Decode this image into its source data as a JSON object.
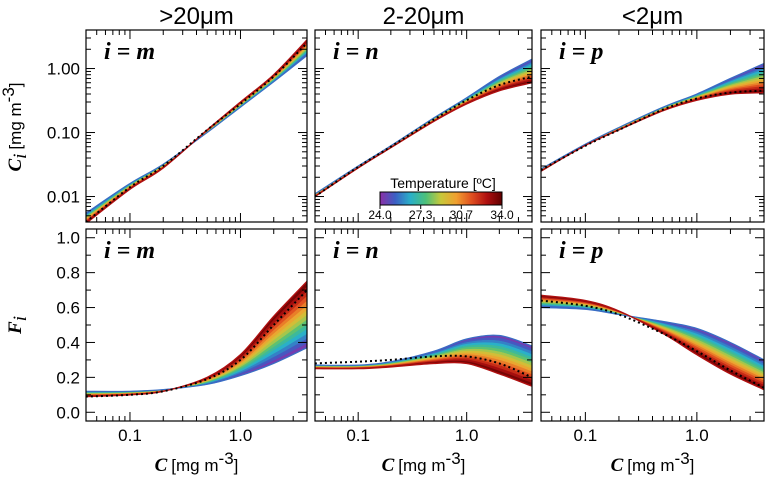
{
  "figure": {
    "column_titles": [
      ">20μm",
      "2-20μm",
      "<2μm"
    ],
    "x_axis": {
      "label_symbol": "C",
      "label_unit": "[mg m",
      "label_exp": "-3",
      "label_close": "]"
    },
    "y_axis_top": {
      "label_symbol": "C",
      "label_sub": "i",
      "label_unit": "[mg m",
      "label_exp": "-3",
      "label_close": "]"
    },
    "y_axis_bottom": {
      "label_symbol": "F",
      "label_sub": "i"
    },
    "colorbar": {
      "title": "Temperature [ºC]",
      "ticks": [
        "24.0",
        "27.3",
        "30.7",
        "34.0"
      ],
      "colors": [
        "#8b2fa6",
        "#3b5fc4",
        "#2ab0c8",
        "#4cc07a",
        "#c8c83a",
        "#f0a030",
        "#e05020",
        "#b01010",
        "#600000"
      ]
    }
  },
  "chart_data": [
    {
      "type": "area",
      "panel": "top-left",
      "label_sym": "i",
      "label_eq": " = ",
      "label_var": "m",
      "xscale": "log",
      "yscale": "log",
      "xlim": [
        0.04,
        4.0
      ],
      "ylim": [
        0.004,
        4.0
      ],
      "x_ticks": [
        "0.1",
        "1.0"
      ],
      "y_ticks": [
        "0.01",
        "0.10",
        "1.00"
      ],
      "x": [
        0.04,
        0.1,
        0.2,
        0.5,
        1.0,
        2.0,
        4.0
      ],
      "series": [
        {
          "name": "T=24.0",
          "values": [
            0.0055,
            0.016,
            0.032,
            0.1,
            0.25,
            0.62,
            1.6
          ]
        },
        {
          "name": "T=34.0",
          "values": [
            0.0038,
            0.013,
            0.028,
            0.11,
            0.3,
            0.8,
            2.8
          ]
        },
        {
          "name": "dotted",
          "values": [
            0.004,
            0.014,
            0.03,
            0.11,
            0.28,
            0.75,
            2.5
          ]
        }
      ]
    },
    {
      "type": "area",
      "panel": "top-middle",
      "label_sym": "i",
      "label_eq": " = ",
      "label_var": "n",
      "xscale": "log",
      "yscale": "log",
      "xlim": [
        0.04,
        4.0
      ],
      "ylim": [
        0.004,
        4.0
      ],
      "x_ticks": [
        "0.1",
        "1.0"
      ],
      "y_ticks": [],
      "x": [
        0.04,
        0.1,
        0.2,
        0.5,
        1.0,
        2.0,
        4.0
      ],
      "series": [
        {
          "name": "T=24.0",
          "values": [
            0.011,
            0.03,
            0.062,
            0.17,
            0.35,
            0.75,
            1.4
          ]
        },
        {
          "name": "T=34.0",
          "values": [
            0.01,
            0.028,
            0.058,
            0.15,
            0.28,
            0.45,
            0.6
          ]
        },
        {
          "name": "dotted",
          "values": [
            0.01,
            0.029,
            0.06,
            0.16,
            0.32,
            0.55,
            0.75
          ]
        }
      ]
    },
    {
      "type": "area",
      "panel": "top-right",
      "label_sym": "i",
      "label_eq": " = ",
      "label_var": "p",
      "xscale": "log",
      "yscale": "log",
      "xlim": [
        0.04,
        4.0
      ],
      "ylim": [
        0.004,
        4.0
      ],
      "x_ticks": [
        "0.1",
        "1.0"
      ],
      "y_ticks": [],
      "x": [
        0.04,
        0.1,
        0.2,
        0.5,
        1.0,
        2.0,
        4.0
      ],
      "series": [
        {
          "name": "T=24.0",
          "values": [
            0.027,
            0.066,
            0.12,
            0.25,
            0.4,
            0.7,
            1.2
          ]
        },
        {
          "name": "T=34.0",
          "values": [
            0.025,
            0.063,
            0.11,
            0.22,
            0.32,
            0.4,
            0.42
          ]
        },
        {
          "name": "dotted",
          "values": [
            0.026,
            0.062,
            0.11,
            0.23,
            0.34,
            0.42,
            0.45
          ]
        }
      ]
    },
    {
      "type": "area",
      "panel": "bottom-left",
      "label_sym": "i",
      "label_eq": " = ",
      "label_var": "m",
      "xscale": "log",
      "yscale": "linear",
      "xlim": [
        0.04,
        4.0
      ],
      "ylim": [
        -0.05,
        1.05
      ],
      "x_ticks": [
        "0.1",
        "1.0"
      ],
      "y_ticks": [
        "0.0",
        "0.2",
        "0.4",
        "0.6",
        "0.8",
        "1.0"
      ],
      "x": [
        0.04,
        0.1,
        0.2,
        0.5,
        1.0,
        2.0,
        4.0
      ],
      "series": [
        {
          "name": "T=24.0",
          "values": [
            0.12,
            0.12,
            0.13,
            0.16,
            0.21,
            0.28,
            0.37
          ]
        },
        {
          "name": "T=34.0",
          "values": [
            0.09,
            0.1,
            0.12,
            0.2,
            0.33,
            0.55,
            0.75
          ]
        },
        {
          "name": "dotted",
          "values": [
            0.09,
            0.1,
            0.12,
            0.19,
            0.3,
            0.5,
            0.7
          ]
        }
      ]
    },
    {
      "type": "area",
      "panel": "bottom-middle",
      "label_sym": "i",
      "label_eq": " = ",
      "label_var": "n",
      "xscale": "log",
      "yscale": "linear",
      "xlim": [
        0.04,
        4.0
      ],
      "ylim": [
        -0.05,
        1.05
      ],
      "x_ticks": [
        "0.1",
        "1.0"
      ],
      "y_ticks": [],
      "x": [
        0.04,
        0.1,
        0.2,
        0.5,
        1.0,
        2.0,
        4.0
      ],
      "series": [
        {
          "name": "T=24.0",
          "values": [
            0.27,
            0.27,
            0.29,
            0.35,
            0.42,
            0.44,
            0.38
          ]
        },
        {
          "name": "T=34.0",
          "values": [
            0.25,
            0.25,
            0.26,
            0.28,
            0.28,
            0.22,
            0.15
          ]
        },
        {
          "name": "dotted",
          "values": [
            0.28,
            0.29,
            0.3,
            0.32,
            0.32,
            0.28,
            0.2
          ]
        }
      ]
    },
    {
      "type": "area",
      "panel": "bottom-right",
      "label_sym": "i",
      "label_eq": " = ",
      "label_var": "p",
      "xscale": "log",
      "yscale": "linear",
      "xlim": [
        0.04,
        4.0
      ],
      "ylim": [
        -0.05,
        1.05
      ],
      "x_ticks": [
        "0.1",
        "1.0"
      ],
      "y_ticks": [],
      "x": [
        0.04,
        0.1,
        0.2,
        0.5,
        1.0,
        2.0,
        4.0
      ],
      "series": [
        {
          "name": "T=24.0",
          "values": [
            0.6,
            0.59,
            0.56,
            0.52,
            0.48,
            0.4,
            0.3
          ]
        },
        {
          "name": "T=34.0",
          "values": [
            0.67,
            0.64,
            0.58,
            0.45,
            0.33,
            0.22,
            0.13
          ]
        },
        {
          "name": "dotted",
          "values": [
            0.64,
            0.61,
            0.56,
            0.45,
            0.35,
            0.24,
            0.14
          ]
        }
      ]
    }
  ]
}
